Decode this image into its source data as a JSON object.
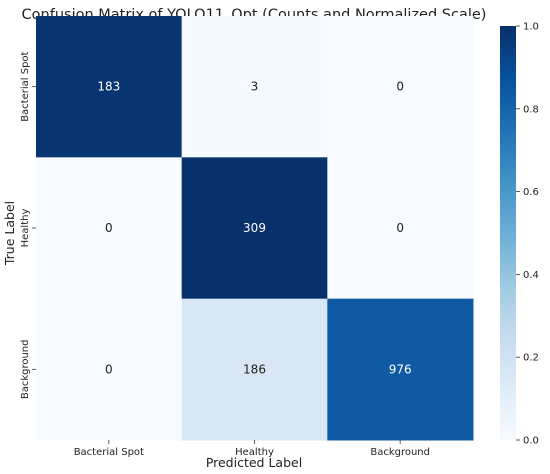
{
  "chart_data": {
    "type": "heatmap",
    "title": "Confusion Matrix of YOLO11_Opt (Counts and Normalized Scale)",
    "xlabel": "Predicted Label",
    "ylabel": "True Label",
    "x_categories": [
      "Bacterial Spot",
      "Healthy",
      "Background"
    ],
    "y_categories": [
      "Bacterial Spot",
      "Healthy",
      "Background"
    ],
    "counts": [
      [
        183,
        3,
        0
      ],
      [
        0,
        309,
        0
      ],
      [
        0,
        186,
        976
      ]
    ],
    "colorbar": {
      "range": [
        0.0,
        1.0
      ],
      "ticks": [
        "0.0",
        "0.2",
        "0.4",
        "0.6",
        "0.8",
        "1.0"
      ],
      "colormap": "Blues"
    }
  }
}
